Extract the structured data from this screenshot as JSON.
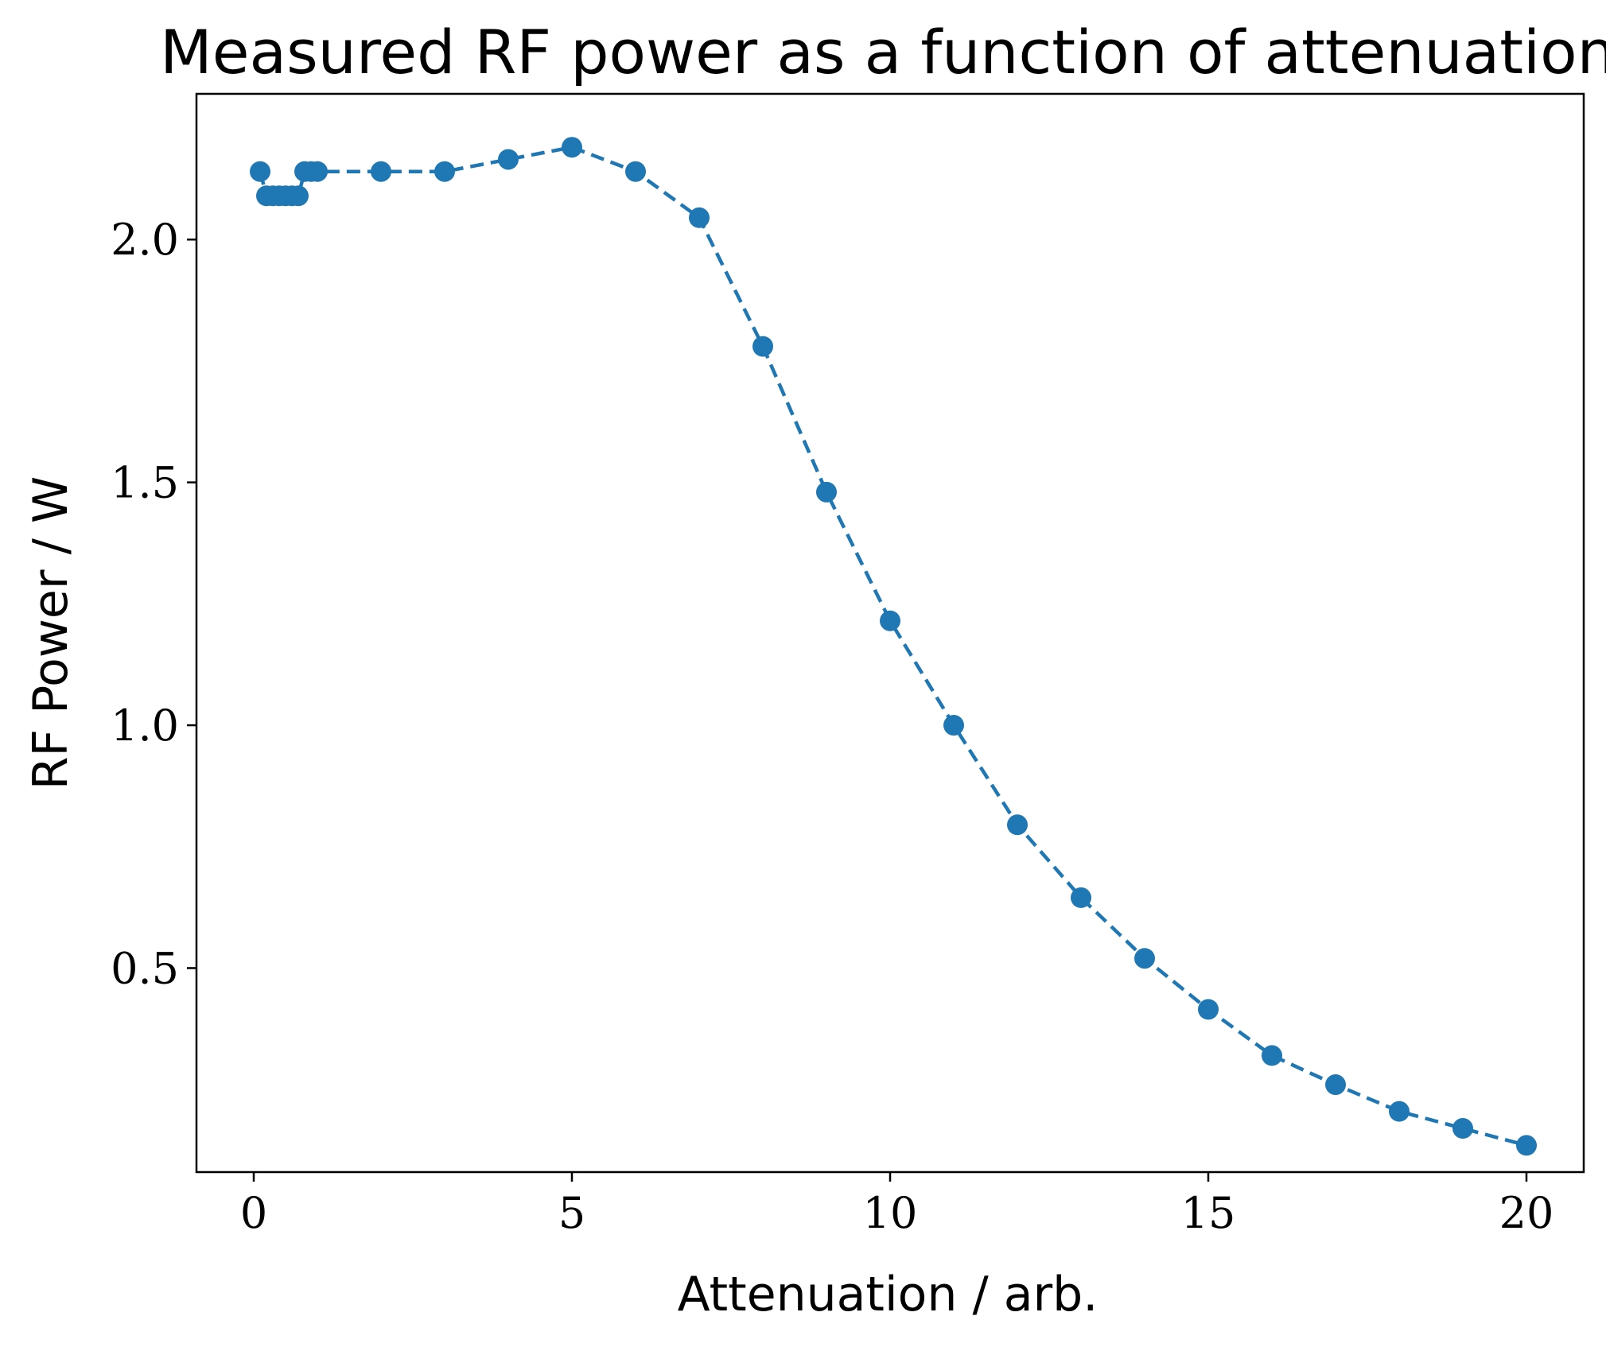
{
  "chart_data": {
    "type": "line",
    "title": "Measured RF power as a function of attenuation",
    "xlabel": "Attenuation / arb.",
    "ylabel": "RF Power / W",
    "xlim": [
      -0.9,
      20.9
    ],
    "ylim": [
      0.08,
      2.3
    ],
    "xticks": [
      0,
      5,
      10,
      15,
      20
    ],
    "xtick_labels": [
      "0",
      "5",
      "10",
      "15",
      "20"
    ],
    "yticks": [
      0.5,
      1.0,
      1.5,
      2.0
    ],
    "ytick_labels": [
      "0.5",
      "1.0",
      "1.5",
      "2.0"
    ],
    "grid": false,
    "legend": null,
    "line_style": "dashed",
    "marker": "circle",
    "color": "#1f77b4",
    "series": [
      {
        "x": [
          0.1,
          0.2,
          0.3,
          0.4,
          0.5,
          0.6,
          0.7,
          0.8,
          0.9,
          1,
          2,
          3,
          4,
          5,
          6,
          7,
          8,
          9,
          10,
          11,
          12,
          13,
          14,
          15,
          16,
          17,
          18,
          19,
          20
        ],
        "y": [
          2.14,
          2.09,
          2.09,
          2.09,
          2.09,
          2.09,
          2.09,
          2.14,
          2.14,
          2.14,
          2.14,
          2.14,
          2.165,
          2.19,
          2.14,
          2.045,
          1.78,
          1.48,
          1.215,
          1.0,
          0.795,
          0.645,
          0.52,
          0.415,
          0.32,
          0.26,
          0.205,
          0.17,
          0.135
        ]
      }
    ]
  }
}
